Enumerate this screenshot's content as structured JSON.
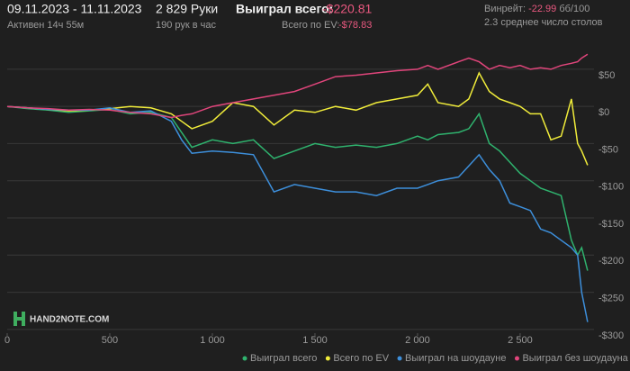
{
  "header": {
    "dates": "09.11.2023 - 11.11.2023",
    "active": "Активен 14ч 55м",
    "hands": "2 829 Руки",
    "rate": "190 рук в час",
    "won_label": "Выиграл всего:",
    "won_value": "-$220.81",
    "ev_label": "Всего по EV:",
    "ev_value": "-$78.83",
    "winrate_label": "Винрейт:",
    "winrate_value": "-22.99",
    "winrate_unit": "бб/100",
    "tables": "2.3 среднее число столов"
  },
  "logo": "HAND2NOTE.COM",
  "chart_data": {
    "type": "line",
    "x": [
      0,
      100,
      200,
      300,
      400,
      500,
      600,
      700,
      800,
      850,
      900,
      1000,
      1100,
      1200,
      1300,
      1400,
      1500,
      1600,
      1700,
      1800,
      1900,
      2000,
      2050,
      2100,
      2200,
      2250,
      2300,
      2350,
      2400,
      2450,
      2500,
      2550,
      2600,
      2650,
      2700,
      2750,
      2780,
      2800,
      2829
    ],
    "series": [
      {
        "name": "Выиграл всего",
        "color": "#2fb36e",
        "values": [
          0,
          -3,
          -5,
          -8,
          -6,
          -4,
          -10,
          -8,
          -15,
          -35,
          -55,
          -45,
          -50,
          -45,
          -70,
          -60,
          -50,
          -55,
          -52,
          -55,
          -50,
          -40,
          -45,
          -38,
          -35,
          -30,
          -10,
          -50,
          -60,
          -75,
          -90,
          -100,
          -110,
          -115,
          -120,
          -180,
          -200,
          -190,
          -221
        ]
      },
      {
        "name": "Всего по EV",
        "color": "#f0ec3a",
        "values": [
          0,
          -2,
          -4,
          -6,
          -5,
          -3,
          0,
          -2,
          -10,
          -20,
          -30,
          -20,
          5,
          0,
          -25,
          -5,
          -8,
          0,
          -5,
          5,
          10,
          15,
          30,
          5,
          0,
          10,
          45,
          20,
          10,
          5,
          0,
          -10,
          -10,
          -45,
          -40,
          10,
          -50,
          -60,
          -79
        ]
      },
      {
        "name": "Выиграл на шоудауне",
        "color": "#3d8fdb",
        "values": [
          0,
          -2,
          -4,
          -5,
          -5,
          -2,
          -8,
          -6,
          -20,
          -45,
          -63,
          -60,
          -62,
          -65,
          -115,
          -105,
          -110,
          -115,
          -115,
          -120,
          -110,
          -110,
          -105,
          -100,
          -95,
          -80,
          -65,
          -85,
          -100,
          -130,
          -135,
          -140,
          -165,
          -170,
          -180,
          -190,
          -200,
          -250,
          -290
        ]
      },
      {
        "name": "Выиграл без шоудауна",
        "color": "#e0457b",
        "values": [
          0,
          -2,
          -3,
          -5,
          -4,
          -5,
          -8,
          -10,
          -15,
          -12,
          -10,
          0,
          5,
          10,
          15,
          20,
          30,
          40,
          42,
          45,
          48,
          50,
          55,
          50,
          60,
          65,
          60,
          50,
          55,
          52,
          55,
          50,
          52,
          50,
          55,
          58,
          60,
          65,
          70
        ]
      }
    ],
    "xlim": [
      0,
      2860
    ],
    "xticks": [
      0,
      500,
      {
        "value": 1000,
        "label": "1 000"
      },
      {
        "value": 1500,
        "label": "1 500"
      },
      {
        "value": 2000,
        "label": "2 000"
      },
      {
        "value": 2500,
        "label": "2 500"
      }
    ],
    "ylim": [
      -305,
      68
    ],
    "yticks": [
      {
        "value": 50,
        "label": "$50"
      },
      {
        "value": 0,
        "label": "$0"
      },
      {
        "value": -50,
        "label": "-$50"
      },
      {
        "value": -100,
        "label": "-$100"
      },
      {
        "value": -150,
        "label": "-$150"
      },
      {
        "value": -200,
        "label": "-$200"
      },
      {
        "value": -250,
        "label": "-$250"
      },
      {
        "value": -300,
        "label": "-$300"
      }
    ],
    "grid": true
  }
}
